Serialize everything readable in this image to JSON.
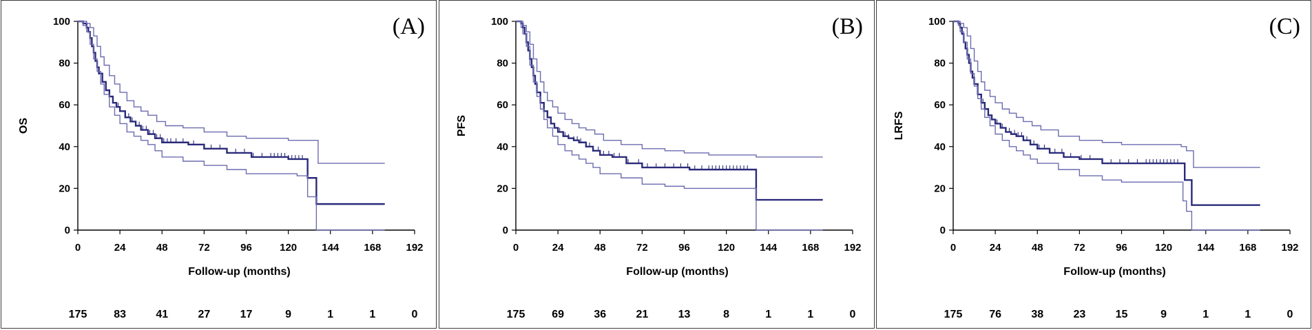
{
  "chart_data": [
    {
      "type": "line",
      "panel_label": "(A)",
      "ylabel": "OS",
      "xlabel": "Follow-up (months)",
      "xlim": [
        0,
        192
      ],
      "ylim": [
        0,
        100
      ],
      "x_ticks": [
        "0",
        "24",
        "48",
        "72",
        "96",
        "120",
        "144",
        "168",
        "192"
      ],
      "y_ticks": [
        "0",
        "20",
        "40",
        "60",
        "80",
        "100"
      ],
      "series": [
        {
          "role": "estimate",
          "x": [
            0,
            3,
            5,
            6,
            7,
            8,
            9,
            10,
            11,
            12,
            14,
            16,
            18,
            20,
            22,
            24,
            27,
            30,
            33,
            36,
            40,
            44,
            48,
            55,
            63,
            72,
            85,
            99,
            120,
            130,
            131,
            135,
            136,
            175
          ],
          "values": [
            100,
            99,
            97,
            95,
            92,
            88,
            85,
            81,
            78,
            75,
            71,
            67,
            64,
            61,
            59,
            57,
            54,
            52,
            50,
            48,
            46,
            44,
            42,
            42,
            41,
            39,
            37,
            35,
            34,
            34,
            25,
            25,
            12.5,
            12.5
          ]
        },
        {
          "role": "upper",
          "x": [
            0,
            3,
            5,
            7,
            9,
            11,
            13,
            15,
            18,
            21,
            24,
            28,
            32,
            36,
            40,
            45,
            50,
            60,
            72,
            85,
            96,
            110,
            120,
            131,
            137,
            175
          ],
          "values": [
            100,
            100,
            99,
            97,
            93,
            88,
            83,
            79,
            74,
            70,
            66,
            62,
            59,
            57,
            55,
            52,
            50,
            49,
            47,
            45,
            44,
            44,
            43,
            43,
            32,
            32
          ]
        },
        {
          "role": "lower",
          "x": [
            0,
            3,
            5,
            7,
            9,
            11,
            13,
            15,
            18,
            21,
            24,
            28,
            32,
            36,
            40,
            44,
            48,
            60,
            72,
            85,
            96,
            110,
            125,
            130,
            131,
            136,
            175
          ],
          "values": [
            100,
            98,
            95,
            89,
            82,
            76,
            70,
            65,
            59,
            55,
            51,
            47,
            45,
            43,
            41,
            38,
            35,
            33,
            31,
            29,
            27,
            27,
            26,
            26,
            16,
            0,
            0
          ]
        }
      ],
      "censor_x": [
        16,
        23,
        27,
        29,
        31,
        33,
        35,
        37,
        39,
        41,
        43,
        45,
        47,
        49,
        51,
        53,
        56,
        60,
        66,
        72,
        76,
        81,
        90,
        95,
        100,
        105,
        110,
        112,
        114,
        116,
        118,
        120,
        122,
        124,
        126,
        128
      ],
      "at_risk": [
        "175",
        "83",
        "41",
        "27",
        "17",
        "9",
        "1",
        "1",
        "0"
      ]
    },
    {
      "type": "line",
      "panel_label": "(B)",
      "ylabel": "PFS",
      "xlabel": "Follow-up (months)",
      "xlim": [
        0,
        192
      ],
      "ylim": [
        0,
        100
      ],
      "x_ticks": [
        "0",
        "24",
        "48",
        "72",
        "96",
        "120",
        "144",
        "168",
        "192"
      ],
      "y_ticks": [
        "0",
        "20",
        "40",
        "60",
        "80",
        "100"
      ],
      "series": [
        {
          "role": "estimate",
          "x": [
            0,
            3,
            4,
            5,
            6,
            7,
            8,
            9,
            10,
            11,
            12,
            14,
            16,
            18,
            20,
            22,
            24,
            27,
            30,
            33,
            36,
            40,
            44,
            48,
            55,
            63,
            72,
            85,
            99,
            120,
            136,
            137,
            175
          ],
          "values": [
            100,
            99,
            97,
            94,
            90,
            86,
            82,
            78,
            74,
            70,
            66,
            61,
            57,
            54,
            51,
            49,
            47,
            45,
            44,
            43,
            42,
            40,
            38,
            36,
            35,
            32,
            30,
            30,
            29,
            29,
            29,
            14.5,
            14.5
          ]
        },
        {
          "role": "upper",
          "x": [
            0,
            3,
            4,
            6,
            8,
            10,
            12,
            14,
            16,
            18,
            21,
            24,
            28,
            32,
            36,
            40,
            45,
            50,
            60,
            72,
            85,
            96,
            110,
            137,
            175
          ],
          "values": [
            100,
            100,
            98,
            95,
            89,
            82,
            76,
            71,
            66,
            62,
            59,
            56,
            53,
            51,
            49,
            48,
            46,
            43,
            41,
            39,
            38,
            37,
            36,
            35,
            35
          ]
        },
        {
          "role": "lower",
          "x": [
            0,
            3,
            4,
            6,
            8,
            10,
            12,
            14,
            16,
            18,
            21,
            24,
            28,
            32,
            36,
            40,
            44,
            48,
            60,
            72,
            85,
            96,
            110,
            125,
            136,
            137,
            175
          ],
          "values": [
            100,
            97,
            94,
            88,
            79,
            71,
            64,
            58,
            53,
            49,
            45,
            41,
            38,
            36,
            34,
            32,
            30,
            27,
            25,
            22,
            21,
            20,
            20,
            20,
            20,
            0,
            0
          ]
        }
      ],
      "censor_x": [
        18,
        22,
        25,
        28,
        30,
        33,
        35,
        37,
        40,
        42,
        44,
        47,
        50,
        53,
        56,
        59,
        64,
        70,
        75,
        80,
        85,
        90,
        94,
        98,
        102,
        106,
        110,
        112,
        114,
        116,
        118,
        120,
        122,
        124,
        126,
        128,
        130,
        132
      ],
      "at_risk": [
        "175",
        "69",
        "36",
        "21",
        "13",
        "8",
        "1",
        "1",
        "0"
      ]
    },
    {
      "type": "line",
      "panel_label": "(C)",
      "ylabel": "LRFS",
      "xlabel": "Follow-up (months)",
      "xlim": [
        0,
        192
      ],
      "ylim": [
        0,
        100
      ],
      "x_ticks": [
        "0",
        "24",
        "48",
        "72",
        "96",
        "120",
        "144",
        "168",
        "192"
      ],
      "y_ticks": [
        "0",
        "20",
        "40",
        "60",
        "80",
        "100"
      ],
      "series": [
        {
          "role": "estimate",
          "x": [
            0,
            3,
            4,
            5,
            6,
            7,
            8,
            9,
            10,
            11,
            12,
            14,
            16,
            18,
            20,
            22,
            24,
            27,
            30,
            33,
            36,
            40,
            44,
            48,
            55,
            63,
            72,
            85,
            99,
            120,
            131,
            132,
            136,
            175
          ],
          "values": [
            100,
            99,
            97,
            94,
            90,
            87,
            84,
            80,
            76,
            73,
            70,
            65,
            61,
            58,
            55,
            53,
            51,
            49,
            47,
            46,
            45,
            43,
            41,
            39,
            37,
            35,
            34,
            32,
            32,
            32,
            32,
            24,
            12,
            12
          ]
        },
        {
          "role": "upper",
          "x": [
            0,
            3,
            4,
            6,
            8,
            10,
            12,
            14,
            16,
            18,
            21,
            24,
            28,
            32,
            36,
            40,
            45,
            50,
            60,
            72,
            85,
            96,
            110,
            130,
            133,
            137,
            175
          ],
          "values": [
            100,
            100,
            99,
            97,
            93,
            87,
            81,
            76,
            71,
            67,
            64,
            61,
            58,
            56,
            54,
            52,
            50,
            48,
            45,
            43,
            42,
            41,
            41,
            40,
            38,
            30,
            30
          ]
        },
        {
          "role": "lower",
          "x": [
            0,
            3,
            4,
            6,
            8,
            10,
            12,
            14,
            16,
            18,
            21,
            24,
            28,
            32,
            36,
            40,
            44,
            48,
            60,
            72,
            85,
            96,
            110,
            125,
            130,
            131,
            133,
            136,
            175
          ],
          "values": [
            100,
            98,
            95,
            90,
            82,
            75,
            69,
            63,
            58,
            54,
            50,
            46,
            43,
            40,
            38,
            36,
            34,
            32,
            29,
            26,
            24,
            23,
            23,
            23,
            23,
            14,
            9,
            0,
            0
          ]
        }
      ],
      "censor_x": [
        17,
        22,
        25,
        28,
        30,
        32,
        35,
        37,
        39,
        42,
        44,
        46,
        49,
        52,
        55,
        58,
        62,
        67,
        73,
        78,
        85,
        90,
        95,
        100,
        105,
        110,
        112,
        114,
        116,
        118,
        120,
        122,
        124,
        126,
        128
      ],
      "at_risk": [
        "175",
        "76",
        "38",
        "23",
        "15",
        "9",
        "1",
        "1",
        "0"
      ]
    }
  ]
}
